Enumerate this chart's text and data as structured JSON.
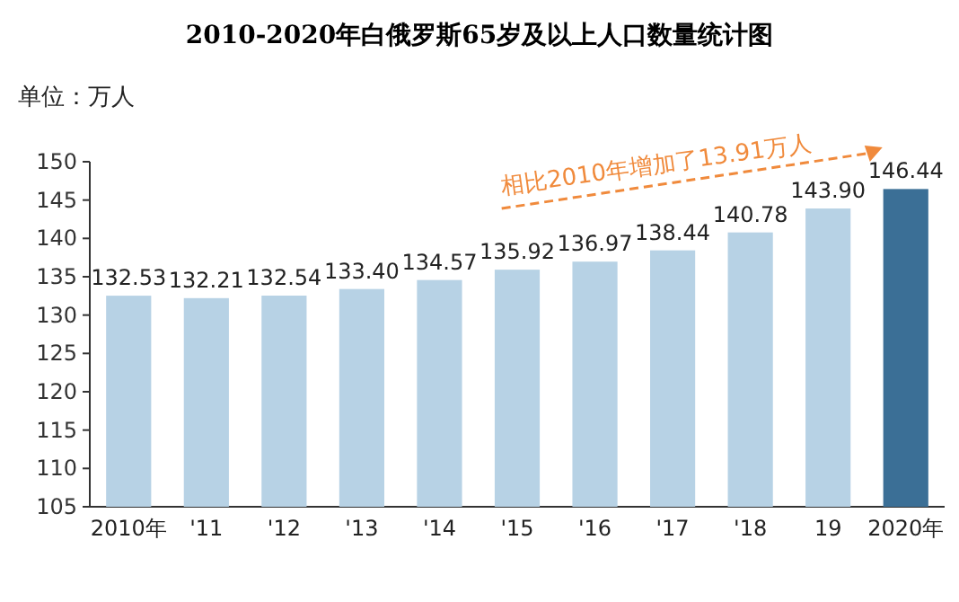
{
  "chart_data": {
    "type": "bar",
    "title": "2010-2020年白俄罗斯65岁及以上人口数量统计图",
    "ylabel": "单位：万人",
    "categories": [
      "2010年",
      "'11",
      "'12",
      "'13",
      "'14",
      "'15",
      "'16",
      "'17",
      "'18",
      "19",
      "2020年"
    ],
    "values": [
      132.53,
      132.21,
      132.54,
      133.4,
      134.57,
      135.92,
      136.97,
      138.44,
      140.78,
      143.9,
      146.44
    ],
    "value_labels": [
      "132.53",
      "132.21",
      "132.54",
      "133.40",
      "134.57",
      "135.92",
      "136.97",
      "138.44",
      "140.78",
      "143.90",
      "146.44"
    ],
    "colors": [
      "#b7d2e5",
      "#b7d2e5",
      "#b7d2e5",
      "#b7d2e5",
      "#b7d2e5",
      "#b7d2e5",
      "#b7d2e5",
      "#b7d2e5",
      "#b7d2e5",
      "#b7d2e5",
      "#3b6f96"
    ],
    "ylim": [
      105,
      150
    ],
    "yticks": [
      105,
      110,
      115,
      120,
      125,
      130,
      135,
      140,
      145,
      150
    ],
    "grid": false,
    "annotations": [
      "相比2010年增加了13.91万人"
    ]
  }
}
